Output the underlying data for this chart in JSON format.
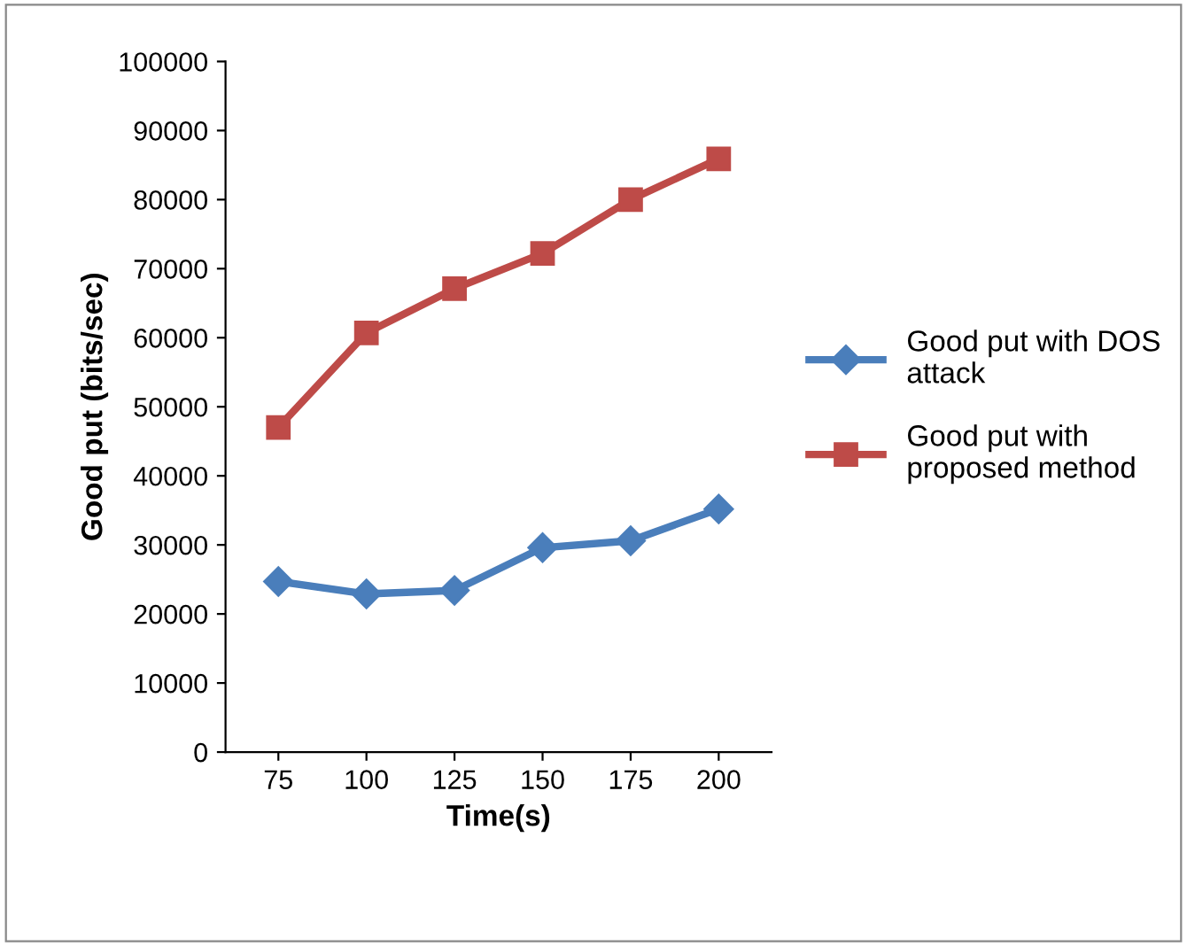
{
  "chart_data": {
    "type": "line",
    "xlabel": "Time(s)",
    "ylabel": "Good put (bits/sec)",
    "categories": [
      "75",
      "100",
      "125",
      "150",
      "175",
      "200"
    ],
    "ylim": [
      0,
      100000
    ],
    "yticks": [
      0,
      10000,
      20000,
      30000,
      40000,
      50000,
      60000,
      70000,
      80000,
      90000,
      100000
    ],
    "grid": false,
    "legend": "right",
    "series": [
      {
        "name": "Good put with DOS attack",
        "color": "#4a7ebb",
        "marker": "diamond",
        "values": [
          24700,
          22900,
          23400,
          29600,
          30600,
          35200
        ]
      },
      {
        "name": "Good put with proposed method",
        "color": "#be4b48",
        "marker": "square",
        "values": [
          47000,
          60700,
          67100,
          72200,
          80000,
          85900
        ]
      }
    ]
  }
}
